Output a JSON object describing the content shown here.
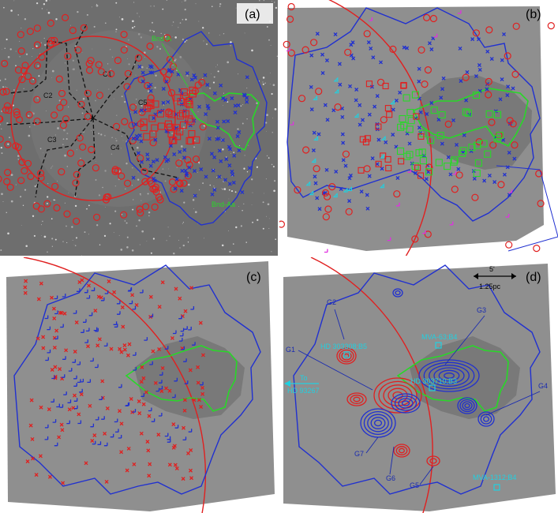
{
  "panels": {
    "a": {
      "label": "(a)",
      "subregions": [
        "C1",
        "C2",
        "C3",
        "C4",
        "C5"
      ],
      "boundary_labels": [
        "Bnd-A",
        "Bnd-Aa"
      ]
    },
    "b": {
      "label": "(b)"
    },
    "c": {
      "label": "(c)"
    },
    "d": {
      "label": "(d)",
      "scale_arcmin": "5'",
      "scale_pc": "1.25pc",
      "group_labels": [
        "G1",
        "G2",
        "G3",
        "G4",
        "G5",
        "G6",
        "G7"
      ],
      "star_labels": [
        "HD 303308;B5",
        "MVA-63;B4",
        "HD 303710;B3",
        "MVA-1312;B4"
      ],
      "arrow_label": "To",
      "arrow_target": "HD 93267"
    }
  },
  "colors": {
    "background": "#8f8f8f",
    "red": "#e02020",
    "blue": "#2030d0",
    "green": "#28d828",
    "cyan": "#20d0e0",
    "magenta": "#e030e0"
  }
}
